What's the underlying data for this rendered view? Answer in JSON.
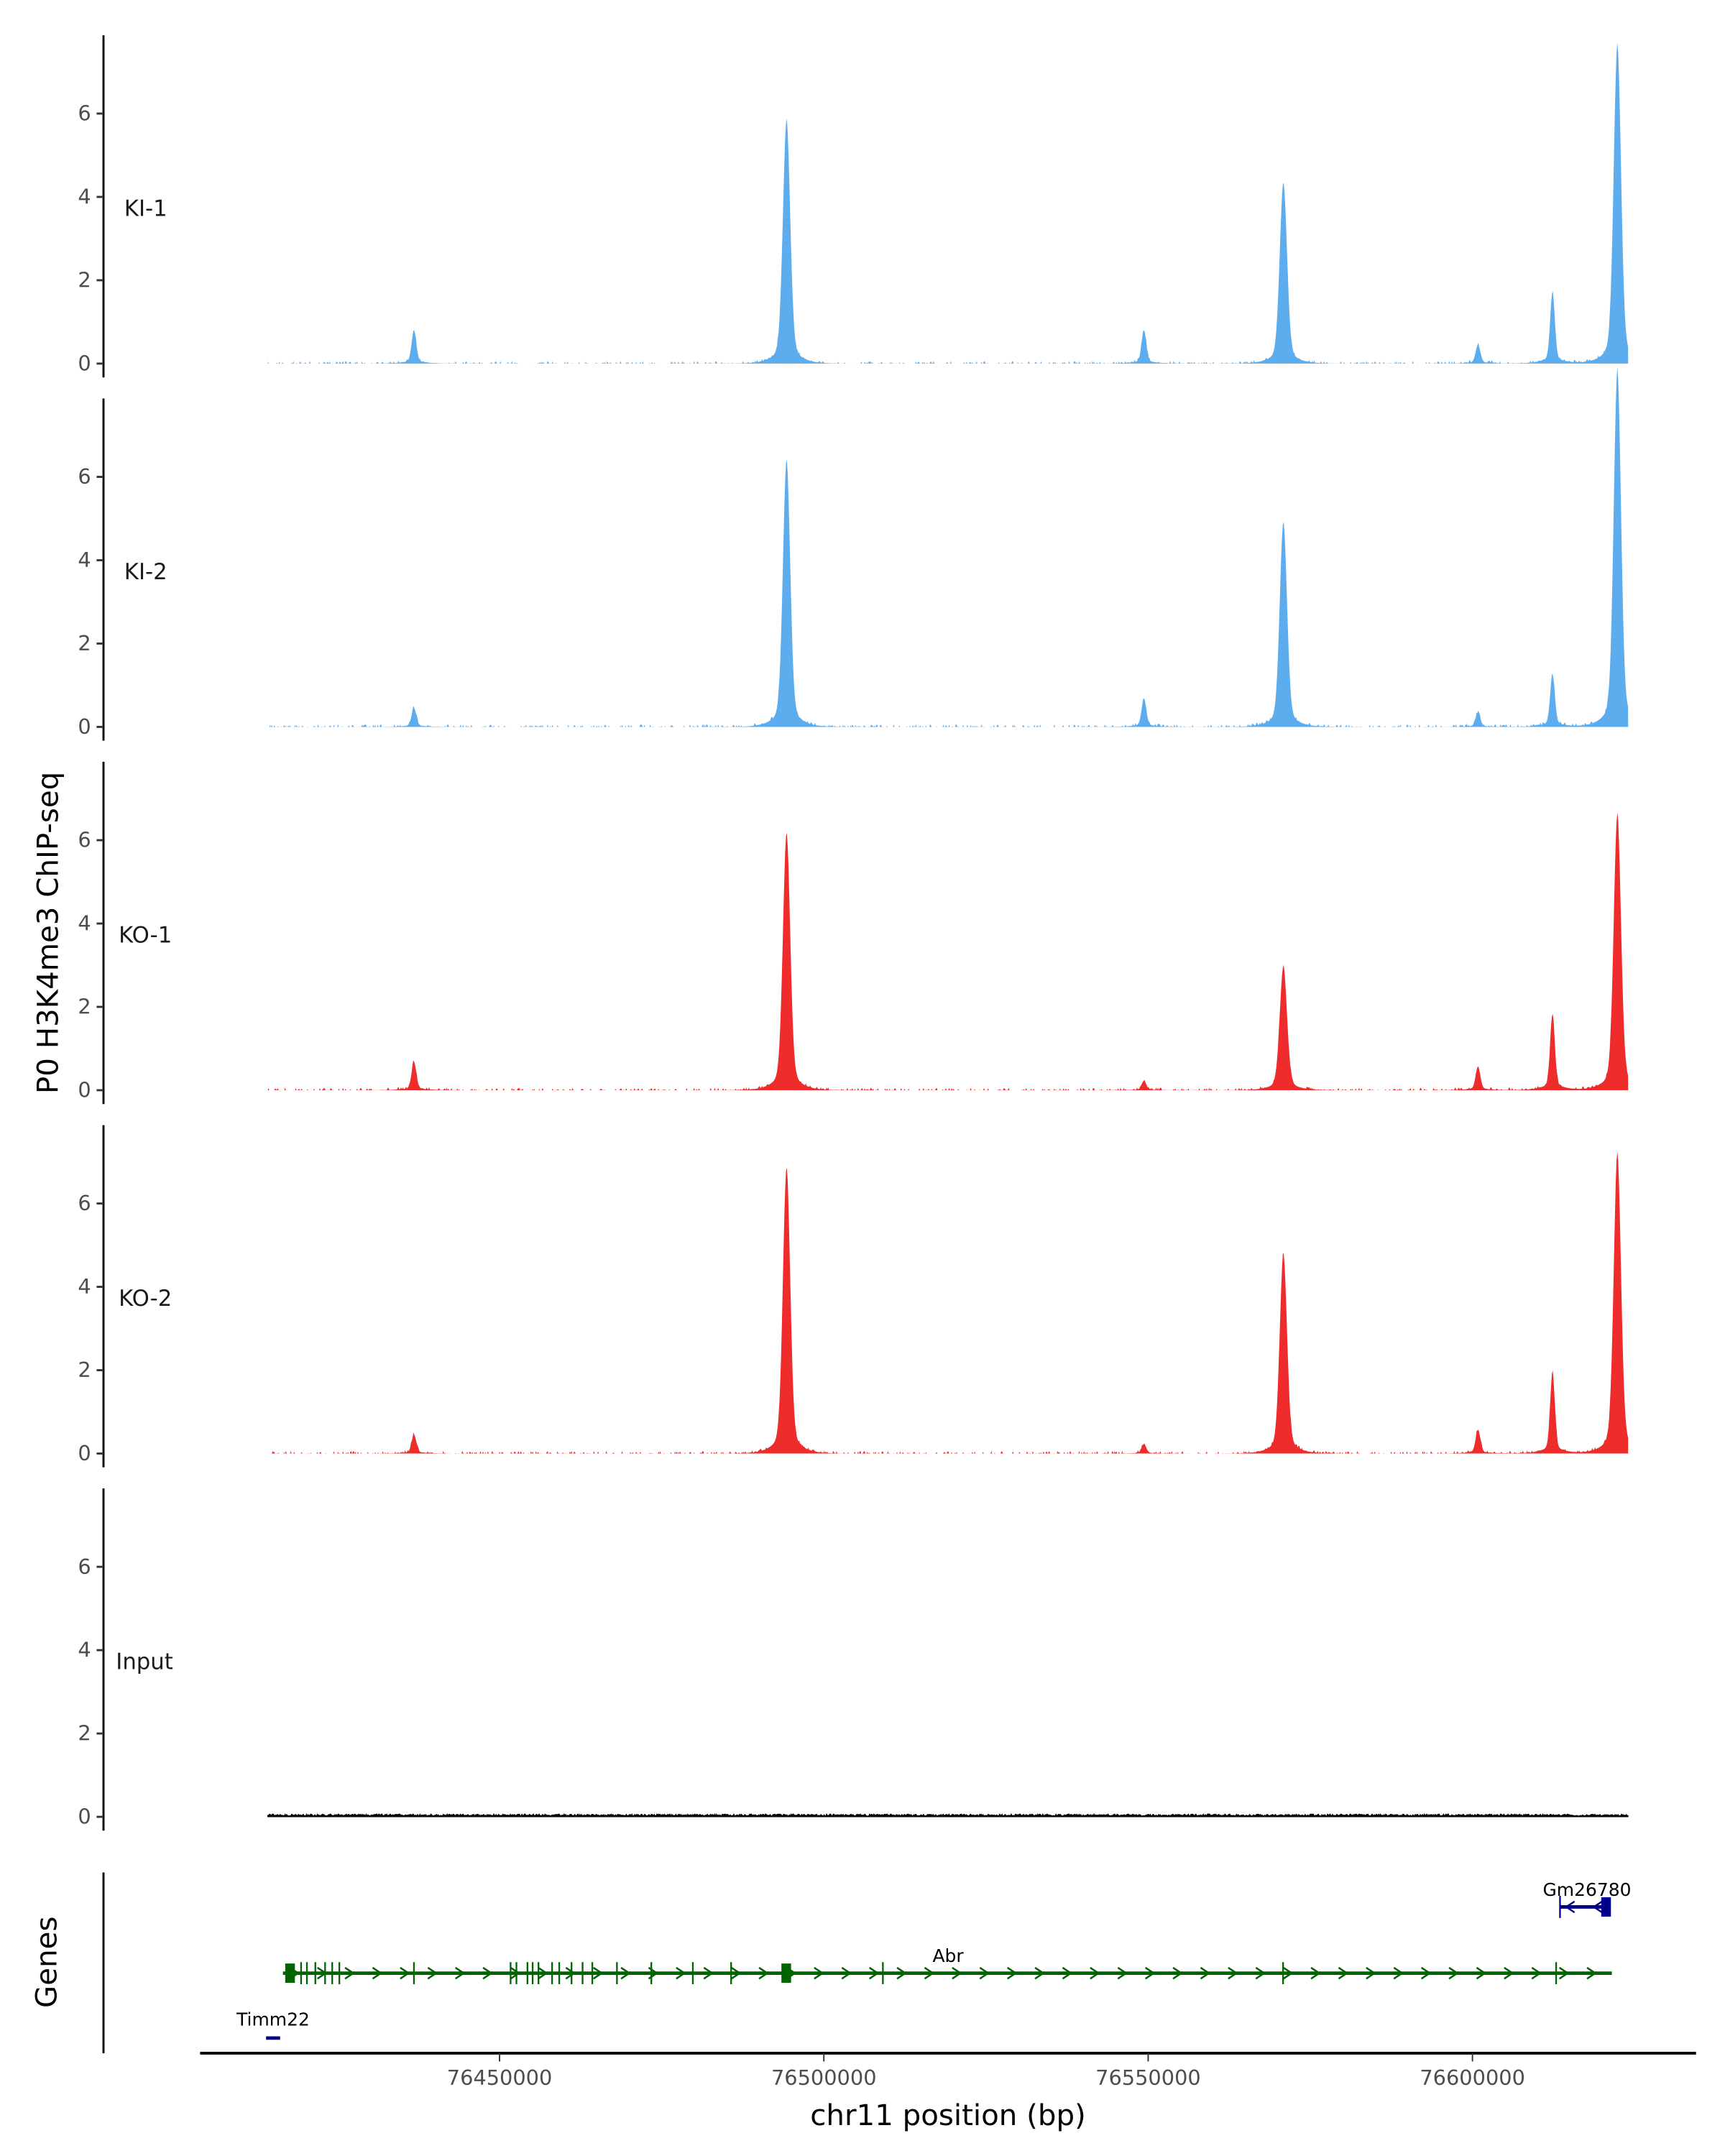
{
  "chart_data": {
    "type": "area",
    "title": "",
    "ylabel": "P0 H3K4me3 ChIP-seq",
    "xlabel": "chr11 position (bp)",
    "genes_label": "Genes",
    "xlim": [
      76414250,
      76624000
    ],
    "ylim": [
      0,
      7.8
    ],
    "x_ticks": [
      76450000,
      76500000,
      76550000,
      76600000
    ],
    "x_tick_labels": [
      "76450000",
      "76500000",
      "76550000",
      "76600000"
    ],
    "y_ticks": [
      0,
      2,
      4,
      6
    ],
    "y_tick_labels": [
      "0",
      "2",
      "4",
      "6"
    ],
    "peak_positions": [
      76436800,
      76494250,
      76549350,
      76570850,
      76600850,
      76612340,
      76622340
    ],
    "series": [
      {
        "name": "KI-1",
        "color": "#5DADEE",
        "peak_heights": [
          0.7,
          5.1,
          0.7,
          3.8,
          0.4,
          1.5,
          6.7
        ]
      },
      {
        "name": "KI-2",
        "color": "#5DADEE",
        "peak_heights": [
          0.4,
          5.6,
          0.6,
          4.3,
          0.3,
          1.1,
          7.5
        ]
      },
      {
        "name": "KO-1",
        "color": "#EE2C2C",
        "peak_heights": [
          0.6,
          5.4,
          0.2,
          2.6,
          0.5,
          1.6,
          5.8
        ]
      },
      {
        "name": "KO-2",
        "color": "#EE2C2C",
        "peak_heights": [
          0.4,
          6.0,
          0.2,
          4.2,
          0.5,
          1.7,
          6.3
        ]
      },
      {
        "name": "Input",
        "color": "#000000",
        "peak_heights": [
          0,
          0,
          0,
          0,
          0,
          0,
          0
        ]
      }
    ],
    "genes": [
      {
        "name": "Gm26780",
        "strand": "+",
        "start": 76613400,
        "end": 76621060,
        "color": "#00008B",
        "exons": [
          76613500,
          76620600
        ]
      },
      {
        "name": "Abr",
        "strand": "-",
        "start": 76416600,
        "end": 76621490,
        "color": "#006400",
        "exons": [
          76417700,
          76419400,
          76420300,
          76421600,
          76423100,
          76424200,
          76425300,
          76436800,
          76451700,
          76452600,
          76454300,
          76455100,
          76456000,
          76458100,
          76459200,
          76461100,
          76462800,
          76464300,
          76468100,
          76473400,
          76479800,
          76485700,
          76494200,
          76509100,
          76570800,
          76612900
        ]
      },
      {
        "name": "Timm22",
        "strand": "+",
        "start": 76414000,
        "end": 76416170,
        "color": "#00008B",
        "exons": []
      }
    ]
  }
}
